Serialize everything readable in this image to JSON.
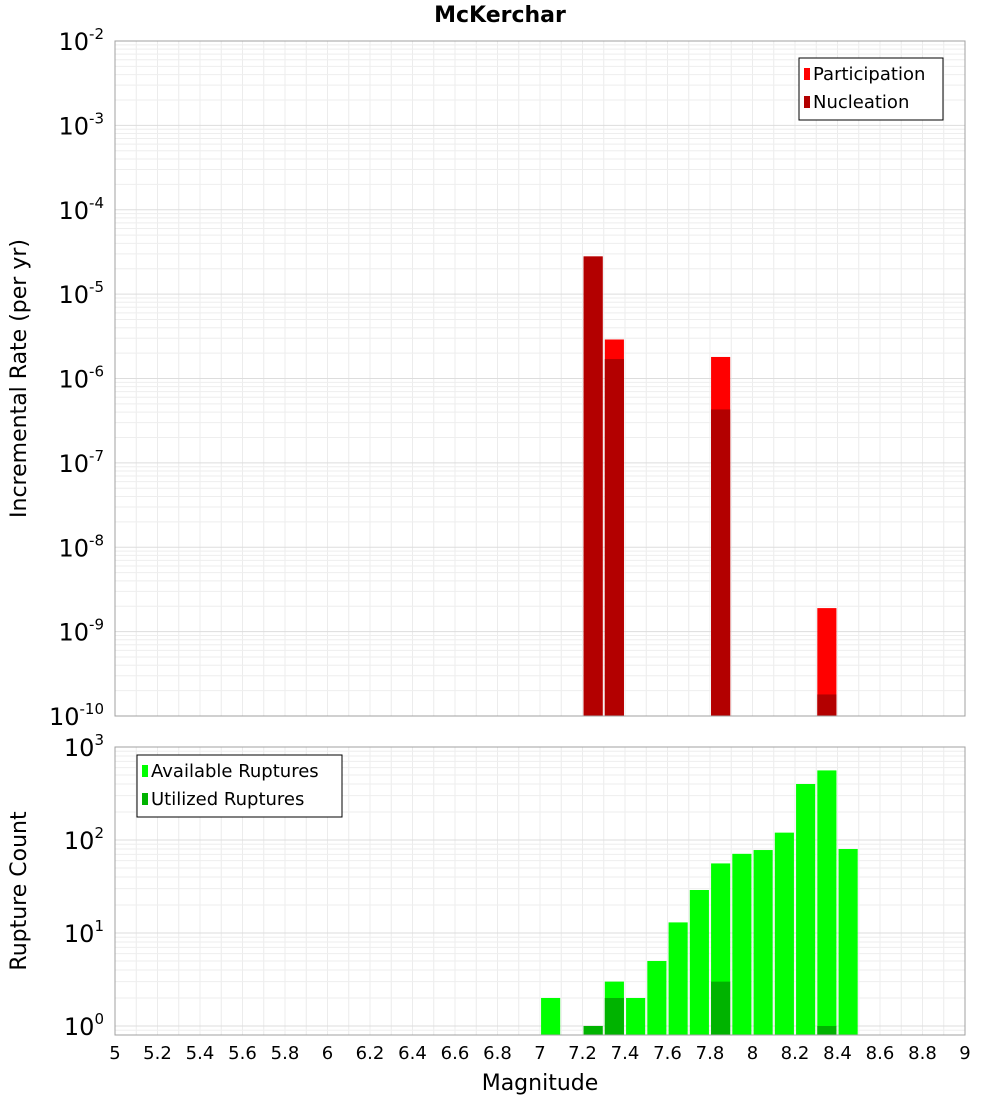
{
  "title": "McKerchar",
  "xlabel": "Magnitude",
  "chart_data": [
    {
      "type": "bar",
      "name": "rate-panel",
      "title": "McKerchar",
      "xlabel": "Magnitude",
      "ylabel": "Incremental Rate (per yr)",
      "yscale": "log",
      "ylim": [
        1e-10,
        0.01
      ],
      "xlim": [
        5,
        9
      ],
      "grid": true,
      "legend_position": "top-right",
      "bar_width": 0.09,
      "series": [
        {
          "name": "Participation",
          "color": "#ff0000",
          "x": [
            7.25,
            7.35,
            7.85,
            8.35
          ],
          "values": [
            2.8e-05,
            2.9e-06,
            1.8e-06,
            1.9e-09
          ]
        },
        {
          "name": "Nucleation",
          "color": "#b30000",
          "x": [
            7.25,
            7.35,
            7.85,
            8.35
          ],
          "values": [
            2.8e-05,
            1.7e-06,
            4.3e-07,
            1.8e-10
          ]
        }
      ],
      "y_ticks": [
        {
          "value": 1e-10,
          "base": "10",
          "exp": "-10"
        },
        {
          "value": 1e-09,
          "base": "10",
          "exp": "-9"
        },
        {
          "value": 1e-08,
          "base": "10",
          "exp": "-8"
        },
        {
          "value": 1e-07,
          "base": "10",
          "exp": "-7"
        },
        {
          "value": 1e-06,
          "base": "10",
          "exp": "-6"
        },
        {
          "value": 1e-05,
          "base": "10",
          "exp": "-5"
        },
        {
          "value": 0.0001,
          "base": "10",
          "exp": "-4"
        },
        {
          "value": 0.001,
          "base": "10",
          "exp": "-3"
        },
        {
          "value": 0.01,
          "base": "10",
          "exp": "-2"
        }
      ]
    },
    {
      "type": "bar",
      "name": "count-panel",
      "xlabel": "Magnitude",
      "ylabel": "Rupture Count",
      "yscale": "log",
      "ylim": [
        0.8,
        1000
      ],
      "xlim": [
        5,
        9
      ],
      "grid": true,
      "legend_position": "top-left",
      "bar_width": 0.09,
      "series": [
        {
          "name": "Available Ruptures",
          "color": "#00ff00",
          "x": [
            7.05,
            7.25,
            7.35,
            7.45,
            7.55,
            7.65,
            7.75,
            7.85,
            7.95,
            8.05,
            8.15,
            8.25,
            8.35,
            8.45
          ],
          "values": [
            2,
            1,
            3,
            2,
            5,
            13,
            29,
            56,
            71,
            78,
            120,
            400,
            560,
            80
          ]
        },
        {
          "name": "Utilized Ruptures",
          "color": "#00b300",
          "x": [
            7.25,
            7.35,
            7.85,
            8.35
          ],
          "values": [
            1,
            2,
            3,
            1
          ]
        }
      ],
      "y_ticks": [
        {
          "value": 1,
          "base": "10",
          "exp": "0"
        },
        {
          "value": 10,
          "base": "10",
          "exp": "1"
        },
        {
          "value": 100,
          "base": "10",
          "exp": "2"
        },
        {
          "value": 1000,
          "base": "10",
          "exp": "3"
        }
      ]
    }
  ],
  "x_ticks": [
    "5",
    "5.2",
    "5.4",
    "5.6",
    "5.8",
    "6",
    "6.2",
    "6.4",
    "6.6",
    "6.8",
    "7",
    "7.2",
    "7.4",
    "7.6",
    "7.8",
    "8",
    "8.2",
    "8.4",
    "8.6",
    "8.8",
    "9"
  ]
}
